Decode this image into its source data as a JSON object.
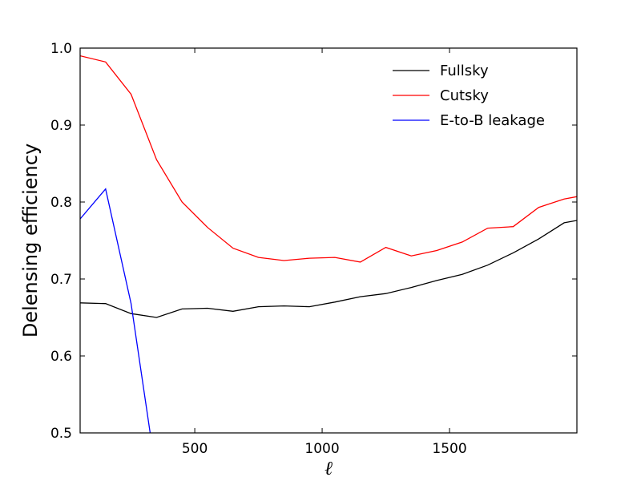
{
  "chart_data": {
    "type": "line",
    "title": "",
    "xlabel": "ℓ",
    "ylabel": "Delensing efficiency",
    "xlim": [
      50,
      2000
    ],
    "ylim": [
      0.5,
      1.0
    ],
    "xticks": [
      500,
      1000,
      1500
    ],
    "yticks": [
      0.5,
      0.6,
      0.7,
      0.8,
      0.9,
      1.0
    ],
    "ytick_labels": [
      "0.5",
      "0.6",
      "0.7",
      "0.8",
      "0.9",
      "1.0"
    ],
    "grid": false,
    "legend_position": "top-right",
    "series": [
      {
        "name": "Fullsky",
        "color": "#000000",
        "x": [
          50,
          150,
          250,
          350,
          450,
          550,
          650,
          750,
          850,
          950,
          1050,
          1150,
          1250,
          1350,
          1450,
          1550,
          1650,
          1750,
          1850,
          1950,
          2000
        ],
        "y": [
          0.669,
          0.668,
          0.655,
          0.65,
          0.661,
          0.662,
          0.658,
          0.664,
          0.665,
          0.664,
          0.67,
          0.677,
          0.681,
          0.689,
          0.698,
          0.706,
          0.718,
          0.734,
          0.752,
          0.773,
          0.776
        ]
      },
      {
        "name": "Cutsky",
        "color": "#ff0000",
        "x": [
          50,
          150,
          250,
          350,
          450,
          550,
          650,
          750,
          850,
          950,
          1050,
          1150,
          1250,
          1350,
          1450,
          1550,
          1650,
          1750,
          1850,
          1950,
          2000
        ],
        "y": [
          0.99,
          0.982,
          0.94,
          0.855,
          0.8,
          0.767,
          0.74,
          0.728,
          0.724,
          0.727,
          0.728,
          0.722,
          0.741,
          0.73,
          0.737,
          0.748,
          0.766,
          0.768,
          0.793,
          0.804,
          0.807
        ]
      },
      {
        "name": "E-to-B leakage",
        "color": "#0000ff",
        "x": [
          50,
          150,
          250,
          325
        ],
        "y": [
          0.778,
          0.817,
          0.668,
          0.5
        ]
      }
    ]
  }
}
